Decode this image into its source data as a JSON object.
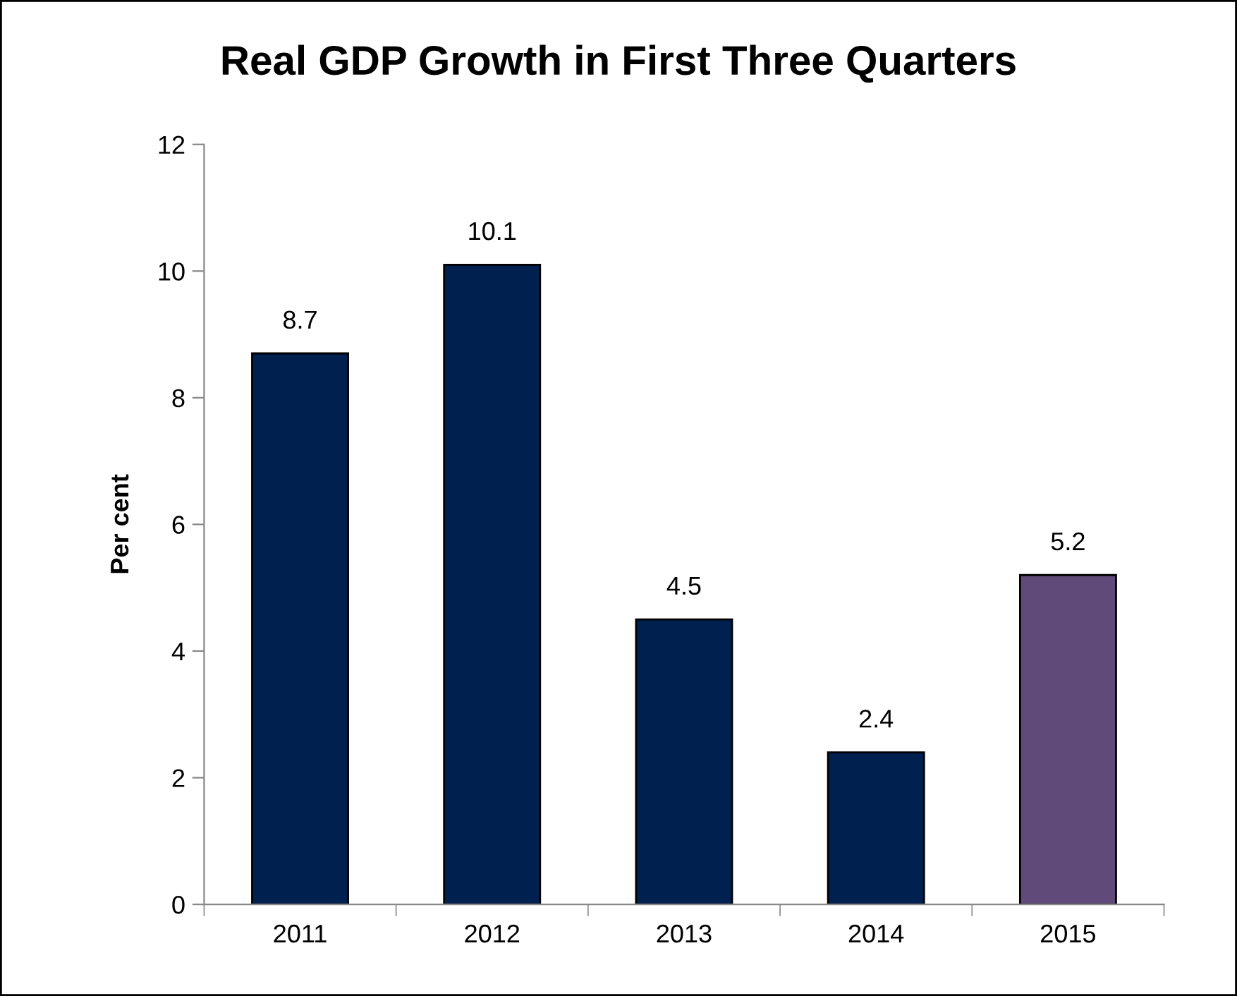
{
  "chart_data": {
    "type": "bar",
    "title": "Real GDP Growth in First Three Quarters",
    "ylabel": "Per cent",
    "categories": [
      "2011",
      "2012",
      "2013",
      "2014",
      "2015"
    ],
    "values": [
      8.7,
      10.1,
      4.5,
      2.4,
      5.2
    ],
    "colors": [
      "#002050",
      "#002050",
      "#002050",
      "#002050",
      "#604a7a"
    ],
    "ylim": [
      0,
      12
    ],
    "yticks": [
      0,
      2,
      4,
      6,
      8,
      10,
      12
    ],
    "grid": false,
    "data_labels": true
  }
}
